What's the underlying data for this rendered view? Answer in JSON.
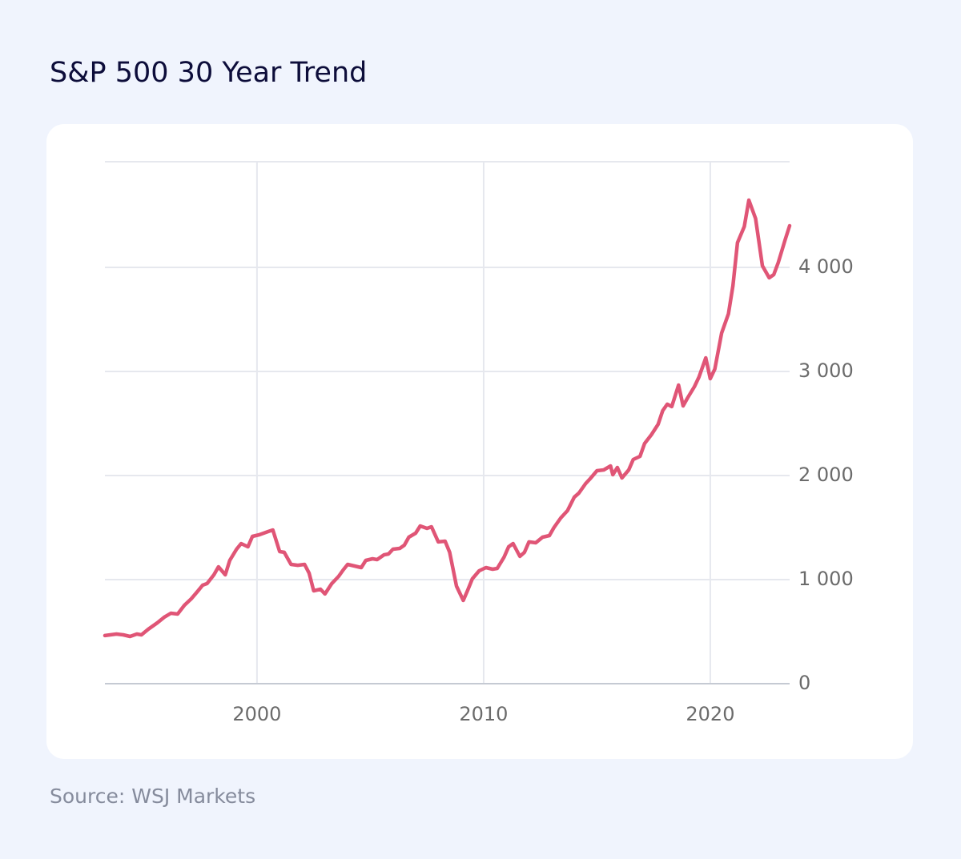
{
  "chart_data": {
    "type": "line",
    "title": "S&P 500 30 Year Trend",
    "source": "Source: WSJ Markets",
    "x": [
      1993.29,
      1993.8,
      1994.1,
      1994.4,
      1994.7,
      1994.9,
      1995.2,
      1995.6,
      1995.9,
      1996.2,
      1996.5,
      1996.8,
      1997.1,
      1997.4,
      1997.6,
      1997.8,
      1998.1,
      1998.3,
      1998.6,
      1998.8,
      1999.1,
      1999.3,
      1999.6,
      1999.8,
      2000.1,
      2000.5,
      2000.7,
      2001.0,
      2001.2,
      2001.5,
      2001.8,
      2002.1,
      2002.3,
      2002.5,
      2002.8,
      2003.0,
      2003.3,
      2003.6,
      2003.8,
      2004.0,
      2004.3,
      2004.6,
      2004.8,
      2005.1,
      2005.3,
      2005.6,
      2005.8,
      2006.0,
      2006.3,
      2006.5,
      2006.7,
      2007.0,
      2007.2,
      2007.5,
      2007.7,
      2008.0,
      2008.3,
      2008.5,
      2008.8,
      2009.1,
      2009.3,
      2009.5,
      2009.8,
      2010.1,
      2010.4,
      2010.6,
      2010.9,
      2011.1,
      2011.3,
      2011.6,
      2011.8,
      2012.0,
      2012.3,
      2012.6,
      2012.9,
      2013.1,
      2013.4,
      2013.7,
      2014.0,
      2014.2,
      2014.5,
      2014.7,
      2015.0,
      2015.3,
      2015.6,
      2015.7,
      2015.9,
      2016.1,
      2016.4,
      2016.6,
      2016.9,
      2017.1,
      2017.4,
      2017.7,
      2017.9,
      2018.1,
      2018.3,
      2018.6,
      2018.8,
      2019.0,
      2019.3,
      2019.5,
      2019.8,
      2020.0,
      2020.2,
      2020.5,
      2020.8,
      2021.0,
      2021.2,
      2021.5,
      2021.7,
      2022.0,
      2022.3,
      2022.6,
      2022.8,
      2023.0,
      2023.3,
      2023.5
    ],
    "series": [
      {
        "name": "S&P 500",
        "color": "#e05576",
        "values": [
          462,
          477,
          469,
          454,
          477,
          469,
          523,
          585,
          638,
          677,
          669,
          754,
          815,
          892,
          946,
          962,
          1046,
          1123,
          1046,
          1185,
          1292,
          1346,
          1315,
          1415,
          1431,
          1462,
          1477,
          1269,
          1262,
          1146,
          1138,
          1146,
          1062,
          892,
          908,
          862,
          962,
          1031,
          1092,
          1146,
          1131,
          1115,
          1185,
          1200,
          1192,
          1238,
          1246,
          1292,
          1300,
          1331,
          1408,
          1446,
          1515,
          1492,
          1508,
          1362,
          1369,
          1262,
          938,
          800,
          900,
          1008,
          1085,
          1115,
          1100,
          1108,
          1215,
          1315,
          1346,
          1223,
          1262,
          1362,
          1354,
          1408,
          1423,
          1500,
          1592,
          1662,
          1792,
          1831,
          1923,
          1969,
          2046,
          2054,
          2092,
          2008,
          2077,
          1977,
          2054,
          2154,
          2185,
          2308,
          2392,
          2492,
          2623,
          2685,
          2662,
          2869,
          2669,
          2746,
          2854,
          2946,
          3131,
          2931,
          3023,
          3369,
          3554,
          3823,
          4238,
          4392,
          4646,
          4469,
          4015,
          3900,
          3931,
          4046,
          4262,
          4400
        ]
      }
    ],
    "xlim": [
      1993.29,
      2023.5
    ],
    "xticks": [
      2000,
      2010,
      2020
    ],
    "ylim": [
      0,
      5000
    ],
    "yticks": [
      0,
      {
        "value": 1000,
        "label": "1 000"
      },
      {
        "value": 2000,
        "label": "2 000"
      },
      {
        "value": 3000,
        "label": "3 000"
      },
      {
        "value": 4000,
        "label": "4 000"
      }
    ],
    "grid": true
  }
}
